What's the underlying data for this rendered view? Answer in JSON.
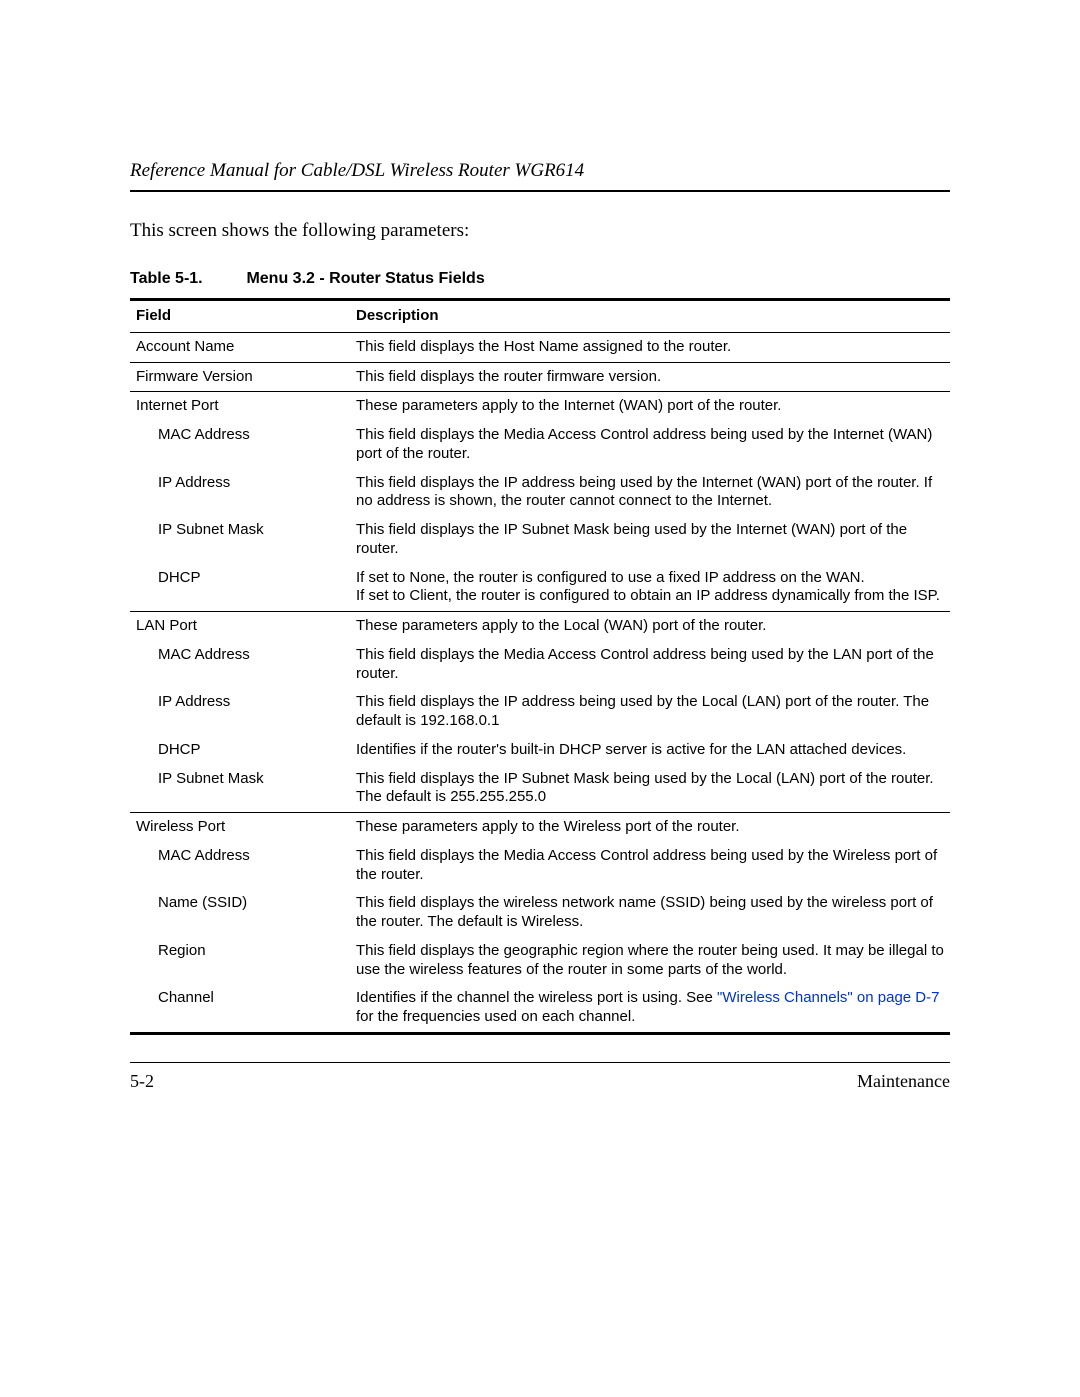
{
  "header": {
    "running_title": "Reference Manual for Cable/DSL Wireless Router WGR614"
  },
  "intro_text": "This screen shows the following parameters:",
  "table": {
    "caption_number": "Table 5-1.",
    "caption_title": "Menu 3.2 - Router Status Fields",
    "columns": {
      "field": "Field",
      "description": "Description"
    },
    "rows": [
      {
        "field": "Account Name",
        "indent": 0,
        "desc": "This field displays the Host Name assigned to the router.",
        "border": true
      },
      {
        "field": "Firmware Version",
        "indent": 0,
        "desc": "This field displays the router firmware version.",
        "border": true
      },
      {
        "field": "Internet Port",
        "indent": 0,
        "desc": "These parameters apply to the Internet (WAN) port of the router.",
        "border": false
      },
      {
        "field": "MAC Address",
        "indent": 1,
        "desc": "This field displays the Media Access Control address being used by the Internet (WAN) port of the router.",
        "border": false
      },
      {
        "field": "IP Address",
        "indent": 1,
        "desc": "This field displays the IP address being used by the Internet (WAN) port of the router. If no address is shown, the router cannot connect to the Internet.",
        "border": false
      },
      {
        "field": "IP Subnet Mask",
        "indent": 1,
        "desc": "This field displays the IP Subnet Mask being used by the Internet (WAN) port of the router.",
        "border": false
      },
      {
        "field": "DHCP",
        "indent": 1,
        "desc": "If set to None, the router is configured to use a fixed IP address on the WAN.\nIf set to Client, the router is configured to obtain an IP address dynamically from the ISP.",
        "border": true
      },
      {
        "field": "LAN Port",
        "indent": 0,
        "desc": "These parameters apply to the Local (WAN) port of the router.",
        "border": false
      },
      {
        "field": "MAC Address",
        "indent": 1,
        "desc": "This field displays the Media Access Control address being used by the LAN port of the router.",
        "border": false
      },
      {
        "field": "IP Address",
        "indent": 1,
        "desc": "This field displays the IP address being used by the Local (LAN) port of the router. The default is 192.168.0.1",
        "border": false
      },
      {
        "field": "DHCP",
        "indent": 1,
        "desc": "Identifies if the router's built-in DHCP server is active for the LAN attached devices.",
        "border": false
      },
      {
        "field": "IP Subnet Mask",
        "indent": 1,
        "desc": "This field displays the IP Subnet Mask being used by the Local (LAN) port of the router. The default is 255.255.255.0",
        "border": true
      },
      {
        "field": "Wireless Port",
        "indent": 0,
        "desc": "These parameters apply to the Wireless port of the router.",
        "border": false
      },
      {
        "field": "MAC Address",
        "indent": 1,
        "desc": "This field displays the Media Access Control address being used by the Wireless port of the router.",
        "border": false
      },
      {
        "field": "Name (SSID)",
        "indent": 1,
        "desc": "This field displays the wireless network name (SSID) being used by the wireless port of the router. The default is Wireless.",
        "border": false
      },
      {
        "field": "Region",
        "indent": 1,
        "desc": "This field displays the geographic region where the router being used. It may be illegal to use the wireless features of the router in some parts of the world.",
        "border": false
      }
    ],
    "channel_row": {
      "field": "Channel",
      "desc_prefix": "Identifies if the channel the wireless port is using. See ",
      "link_text": "\"Wireless Channels\" on page D-7",
      "desc_suffix": " for the frequencies used on each channel.",
      "link_color": "#0033cc"
    }
  },
  "footer": {
    "page_number": "5-2",
    "section": "Maintenance"
  },
  "colors": {
    "text": "#000000",
    "background": "#ffffff",
    "rule": "#000000",
    "link": "#0033cc"
  },
  "typography": {
    "body_serif": "Times New Roman",
    "table_sans": "Arial",
    "running_head_pt": 14,
    "intro_pt": 14,
    "caption_pt": 12,
    "table_pt": 11
  }
}
